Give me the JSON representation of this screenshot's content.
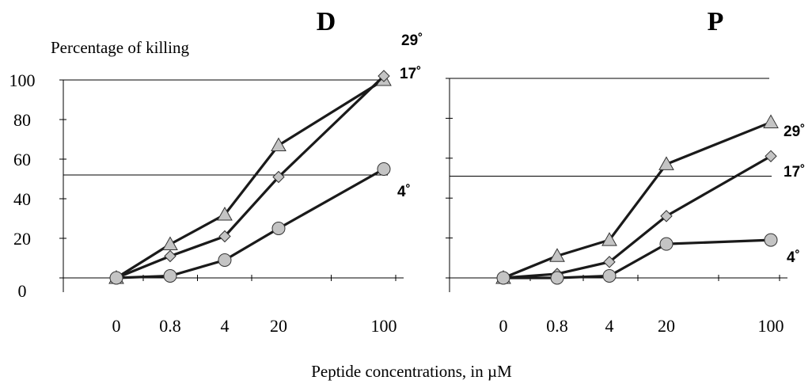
{
  "figure": {
    "ylabel": "Percentage of killing",
    "xlabel": "Peptide concentrations, in µM"
  },
  "chart_data": [
    {
      "type": "line",
      "title": "D",
      "categories": [
        "0",
        "0.8",
        "4",
        "20",
        "100"
      ],
      "ylim": [
        0,
        100
      ],
      "yticks": [
        "100",
        "80",
        "60",
        "40",
        "20",
        "0"
      ],
      "grid": false,
      "reference_line_y": 52,
      "series": [
        {
          "name": "29˚",
          "marker": "triangle",
          "values": [
            0,
            17,
            32,
            67,
            100
          ]
        },
        {
          "name": "17˚",
          "marker": "diamond",
          "values": [
            0,
            11,
            21,
            51,
            102
          ]
        },
        {
          "name": "4˚",
          "marker": "circle",
          "values": [
            0,
            1,
            9,
            25,
            55
          ]
        }
      ]
    },
    {
      "type": "line",
      "title": "P",
      "categories": [
        "0",
        "0.8",
        "4",
        "20",
        "100"
      ],
      "ylim": [
        0,
        100
      ],
      "grid": false,
      "reference_line_y": 51,
      "series": [
        {
          "name": "29˚",
          "marker": "triangle",
          "values": [
            0,
            11,
            19,
            57,
            78
          ]
        },
        {
          "name": "17˚",
          "marker": "diamond",
          "values": [
            0,
            2,
            8,
            31,
            61
          ]
        },
        {
          "name": "4˚",
          "marker": "circle",
          "values": [
            0,
            0,
            1,
            17,
            19
          ]
        }
      ]
    }
  ]
}
